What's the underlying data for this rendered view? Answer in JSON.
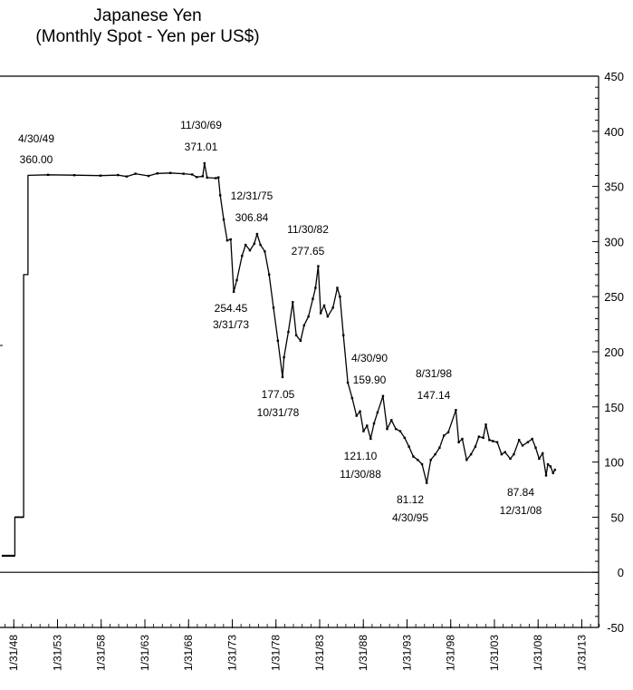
{
  "chart_data": {
    "type": "line",
    "title": "Japanese Yen",
    "subtitle": "(Monthly Spot - Yen per US$)",
    "xlabel": "",
    "ylabel": "",
    "ylim": [
      -50,
      450
    ],
    "xlim": [
      1946.5,
      2015.0
    ],
    "y_ticks": [
      450,
      400,
      350,
      300,
      250,
      200,
      150,
      100,
      50,
      0,
      -50
    ],
    "x_ticks": [
      {
        "label": "1/31/48",
        "value": 1948.08
      },
      {
        "label": "1/31/53",
        "value": 1953.08
      },
      {
        "label": "1/31/58",
        "value": 1958.08
      },
      {
        "label": "1/31/63",
        "value": 1963.08
      },
      {
        "label": "1/31/68",
        "value": 1968.08
      },
      {
        "label": "1/31/73",
        "value": 1973.08
      },
      {
        "label": "1/31/78",
        "value": 1978.08
      },
      {
        "label": "1/31/83",
        "value": 1983.08
      },
      {
        "label": "1/31/88",
        "value": 1988.08
      },
      {
        "label": "1/31/93",
        "value": 1993.08
      },
      {
        "label": "1/31/98",
        "value": 1998.08
      },
      {
        "label": "1/31/03",
        "value": 2003.08
      },
      {
        "label": "1/31/08",
        "value": 2008.08
      },
      {
        "label": "1/31/13",
        "value": 2013.08
      }
    ],
    "grid": false,
    "series": [
      {
        "name": "Yen per US$",
        "points": [
          [
            1946.7,
            15
          ],
          [
            1948.2,
            15
          ],
          [
            1948.2,
            50
          ],
          [
            1949.2,
            50
          ],
          [
            1949.2,
            270
          ],
          [
            1949.7,
            270
          ],
          [
            1949.7,
            360
          ],
          [
            1952.0,
            360.5
          ],
          [
            1955.0,
            360.2
          ],
          [
            1958.0,
            359.8
          ],
          [
            1960.0,
            360.3
          ],
          [
            1961.0,
            359.0
          ],
          [
            1962.0,
            361.5
          ],
          [
            1963.5,
            359.5
          ],
          [
            1964.5,
            361.8
          ],
          [
            1966.0,
            362.2
          ],
          [
            1967.5,
            361.5
          ],
          [
            1968.5,
            360.8
          ],
          [
            1969.0,
            358.5
          ],
          [
            1969.7,
            359.2
          ],
          [
            1969.9,
            371.01
          ],
          [
            1970.2,
            358.0
          ],
          [
            1971.2,
            357.5
          ],
          [
            1971.5,
            358.2
          ],
          [
            1971.7,
            342
          ],
          [
            1972.1,
            320
          ],
          [
            1972.5,
            301
          ],
          [
            1972.9,
            302
          ],
          [
            1973.25,
            254.45
          ],
          [
            1973.6,
            265
          ],
          [
            1974.2,
            287
          ],
          [
            1974.6,
            297
          ],
          [
            1975.1,
            292
          ],
          [
            1975.6,
            298
          ],
          [
            1975.92,
            306.84
          ],
          [
            1976.3,
            297
          ],
          [
            1976.8,
            291
          ],
          [
            1977.3,
            270
          ],
          [
            1977.8,
            240
          ],
          [
            1978.3,
            210
          ],
          [
            1978.83,
            177.05
          ],
          [
            1979.0,
            195
          ],
          [
            1979.5,
            218
          ],
          [
            1980.0,
            245
          ],
          [
            1980.4,
            215
          ],
          [
            1980.9,
            210
          ],
          [
            1981.3,
            224
          ],
          [
            1981.8,
            232
          ],
          [
            1982.3,
            248
          ],
          [
            1982.6,
            258
          ],
          [
            1982.92,
            277.65
          ],
          [
            1983.2,
            235
          ],
          [
            1983.6,
            242
          ],
          [
            1984.0,
            232
          ],
          [
            1984.6,
            240
          ],
          [
            1985.1,
            258
          ],
          [
            1985.4,
            250
          ],
          [
            1985.8,
            215
          ],
          [
            1986.3,
            172
          ],
          [
            1986.8,
            158
          ],
          [
            1987.3,
            142
          ],
          [
            1987.7,
            146
          ],
          [
            1988.1,
            128
          ],
          [
            1988.5,
            133
          ],
          [
            1988.92,
            121.1
          ],
          [
            1989.3,
            135
          ],
          [
            1989.7,
            145
          ],
          [
            1990.33,
            159.9
          ],
          [
            1990.8,
            130
          ],
          [
            1991.3,
            138
          ],
          [
            1991.8,
            130
          ],
          [
            1992.3,
            128
          ],
          [
            1992.8,
            122
          ],
          [
            1993.3,
            114
          ],
          [
            1993.8,
            105
          ],
          [
            1994.3,
            102
          ],
          [
            1994.8,
            98
          ],
          [
            1995.33,
            81.12
          ],
          [
            1995.8,
            102
          ],
          [
            1996.3,
            107
          ],
          [
            1996.8,
            113
          ],
          [
            1997.3,
            124
          ],
          [
            1997.8,
            127
          ],
          [
            1998.67,
            147.14
          ],
          [
            1999.0,
            118
          ],
          [
            1999.4,
            121
          ],
          [
            1999.9,
            102
          ],
          [
            2000.4,
            107
          ],
          [
            2000.9,
            114
          ],
          [
            2001.3,
            123
          ],
          [
            2001.8,
            122
          ],
          [
            2002.1,
            134
          ],
          [
            2002.5,
            120
          ],
          [
            2002.9,
            119
          ],
          [
            2003.4,
            118
          ],
          [
            2003.9,
            107
          ],
          [
            2004.3,
            109
          ],
          [
            2004.9,
            103
          ],
          [
            2005.3,
            107
          ],
          [
            2005.9,
            120
          ],
          [
            2006.3,
            115
          ],
          [
            2006.9,
            118
          ],
          [
            2007.4,
            121
          ],
          [
            2007.8,
            113
          ],
          [
            2008.2,
            103
          ],
          [
            2008.6,
            108
          ],
          [
            2008.99,
            87.84
          ],
          [
            2009.2,
            98
          ],
          [
            2009.5,
            96
          ],
          [
            2009.8,
            90
          ],
          [
            2010.0,
            93
          ]
        ]
      }
    ],
    "annotations": [
      {
        "date": "4/30/49",
        "value": "360.00"
      },
      {
        "date": "11/30/69",
        "value": "371.01"
      },
      {
        "date": "12/31/75",
        "value": "306.84"
      },
      {
        "date": "11/30/82",
        "value": "277.65"
      },
      {
        "date": "3/31/73",
        "value": "254.45"
      },
      {
        "date": "10/31/78",
        "value": "177.05"
      },
      {
        "date": "4/30/90",
        "value": "159.90"
      },
      {
        "date": "8/31/98",
        "value": "147.14"
      },
      {
        "date": "11/30/88",
        "value": "121.10"
      },
      {
        "date": "4/30/95",
        "value": "81.12"
      },
      {
        "date": "12/31/08",
        "value": "87.84"
      }
    ]
  }
}
